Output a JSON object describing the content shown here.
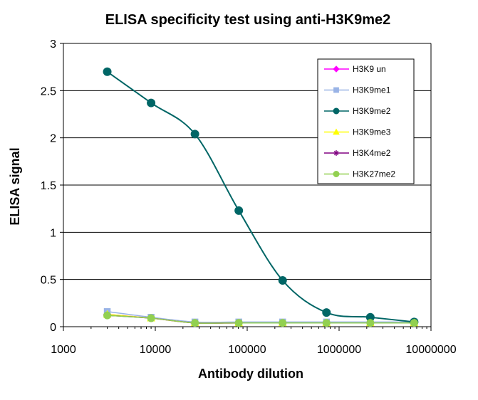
{
  "chart_data": {
    "type": "line",
    "title": "ELISA specificity test using anti-H3K9me2",
    "xlabel": "Antibody  dilution",
    "ylabel": "ELISA signal",
    "xscale": "log",
    "xlim": [
      1000,
      10000000
    ],
    "ylim": [
      0,
      3
    ],
    "xticks": [
      1000,
      10000,
      100000,
      1000000,
      10000000
    ],
    "xtick_labels": [
      "1000",
      "10000",
      "100000",
      "1000000",
      "10000000"
    ],
    "yticks": [
      0,
      0.5,
      1,
      1.5,
      2,
      2.5,
      3
    ],
    "ytick_labels": [
      "0",
      "0.5",
      "1",
      "1.5",
      "2",
      "2.5",
      "3"
    ],
    "grid": "horizontal",
    "legend_position": "top-right",
    "x": [
      3000,
      9000,
      27000,
      81000,
      243000,
      729000,
      2187000,
      6561000
    ],
    "series": [
      {
        "name": "H3K9 un",
        "color": "#ff00ff",
        "marker": "diamond",
        "values": [
          0.13,
          0.09,
          0.04,
          0.04,
          0.04,
          0.04,
          0.04,
          0.04
        ]
      },
      {
        "name": "H3K9me1",
        "color": "#99b3e6",
        "marker": "square",
        "values": [
          0.16,
          0.1,
          0.05,
          0.05,
          0.05,
          0.05,
          0.05,
          0.05
        ]
      },
      {
        "name": "H3K9me2",
        "color": "#006666",
        "marker": "circle",
        "values": [
          2.7,
          2.37,
          2.04,
          1.23,
          0.49,
          0.15,
          0.1,
          0.05
        ]
      },
      {
        "name": "H3K9me3",
        "color": "#ffff00",
        "marker": "triangle",
        "values": [
          0.13,
          0.09,
          0.04,
          0.04,
          0.04,
          0.04,
          0.04,
          0.04
        ]
      },
      {
        "name": "H3K4me2",
        "color": "#800080",
        "marker": "star",
        "values": [
          0.12,
          0.09,
          0.04,
          0.04,
          0.04,
          0.04,
          0.04,
          0.04
        ]
      },
      {
        "name": "H3K27me2",
        "color": "#92d050",
        "marker": "circle",
        "values": [
          0.12,
          0.09,
          0.04,
          0.04,
          0.04,
          0.04,
          0.04,
          0.04
        ]
      }
    ]
  }
}
